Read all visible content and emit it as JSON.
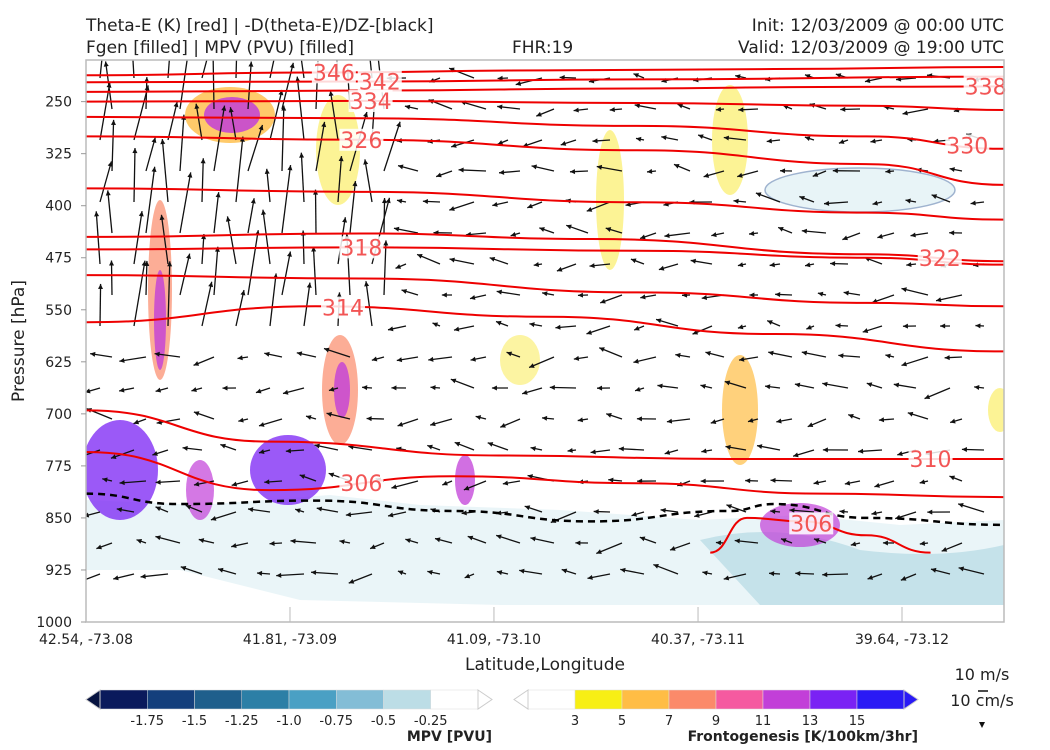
{
  "header": {
    "title_left_1": "Theta-E (K) [red] | -D(theta-E)/DZ-[black]",
    "title_left_2": "Fgen [filled] | MPV (PVU) [filled]",
    "title_center": "FHR:19",
    "title_right_1": "Init: 12/03/2009 @ 00:00 UTC",
    "title_right_2": "Valid: 12/03/2009 @ 19:00 UTC"
  },
  "colors": {
    "theta_e": "#ee0000",
    "dthetae_dz": "#000000",
    "vectors": "#111111",
    "mpv_scale": [
      "#0a1a5c",
      "#143f7c",
      "#1f5f8c",
      "#2c7fa6",
      "#4aa0c4",
      "#83bdd6",
      "#bcdde6",
      "#ffffff"
    ],
    "fgen_scale": [
      "#ffffff",
      "#f7ef15",
      "#ffbd45",
      "#fb8a6a",
      "#f55aa0",
      "#c23fd8",
      "#7a22f4",
      "#2a1af5"
    ]
  },
  "chart_data": {
    "type": "cross-section",
    "xlabel": "Latitude,Longitude",
    "ylabel": "Pressure [hPa]",
    "x_ticks": [
      "42.54, -73.08",
      "41.81, -73.09",
      "41.09, -73.10",
      "40.37, -73.11",
      "39.64, -73.12"
    ],
    "x_tick_frac": [
      0,
      0.2222,
      0.4444,
      0.6667,
      0.8889
    ],
    "y_ticks": [
      250,
      325,
      400,
      475,
      550,
      625,
      700,
      775,
      850,
      925,
      1000
    ],
    "ylim": [
      1000,
      190
    ],
    "theta_e_contours": [
      {
        "label": "346",
        "points": [
          [
            0,
            212
          ],
          [
            0.25,
            208
          ],
          [
            0.5,
            205
          ],
          [
            0.75,
            203
          ],
          [
            1,
            200
          ]
        ],
        "label_x": 0.27
      },
      {
        "label": "342",
        "points": [
          [
            0,
            222
          ],
          [
            0.3,
            221
          ],
          [
            0.6,
            218
          ],
          [
            1,
            214
          ]
        ],
        "label_x": 0.32
      },
      {
        "label": "338",
        "points": [
          [
            0,
            236
          ],
          [
            0.3,
            234
          ],
          [
            0.6,
            231
          ],
          [
            0.8,
            229
          ],
          [
            1,
            228
          ]
        ],
        "label_x": 0.98
      },
      {
        "label": "334",
        "points": [
          [
            0,
            250
          ],
          [
            0.3,
            249
          ],
          [
            0.6,
            252
          ],
          [
            0.85,
            256
          ],
          [
            1,
            262
          ]
        ],
        "label_x": 0.31
      },
      {
        "label": "330",
        "points": [
          [
            0,
            272
          ],
          [
            0.3,
            274
          ],
          [
            0.6,
            285
          ],
          [
            0.85,
            300
          ],
          [
            1,
            318
          ]
        ],
        "label_x": 0.96
      },
      {
        "label": "326",
        "points": [
          [
            0,
            300
          ],
          [
            0.3,
            305
          ],
          [
            0.6,
            320
          ],
          [
            0.85,
            340
          ],
          [
            1,
            370
          ]
        ],
        "label_x": 0.3
      },
      {
        "label": "",
        "points": [
          [
            0,
            375
          ],
          [
            0.3,
            380
          ],
          [
            0.6,
            395
          ],
          [
            0.85,
            410
          ],
          [
            1,
            420
          ]
        ],
        "label_x": 0.5
      },
      {
        "label": "318",
        "points": [
          [
            0,
            463
          ],
          [
            0.3,
            460
          ],
          [
            0.6,
            465
          ],
          [
            0.85,
            475
          ],
          [
            1,
            485
          ]
        ],
        "label_x": 0.3
      },
      {
        "label": "322",
        "points": [
          [
            0,
            445
          ],
          [
            0.3,
            440
          ],
          [
            0.55,
            448
          ],
          [
            0.85,
            470
          ],
          [
            1,
            480
          ]
        ],
        "label_x": 0.93
      },
      {
        "label": "",
        "points": [
          [
            0,
            500
          ],
          [
            0.3,
            505
          ],
          [
            0.6,
            525
          ],
          [
            0.85,
            540
          ],
          [
            1,
            545
          ]
        ],
        "label_x": 0.5
      },
      {
        "label": "314",
        "points": [
          [
            0,
            568
          ],
          [
            0.25,
            545
          ],
          [
            0.5,
            560
          ],
          [
            0.75,
            585
          ],
          [
            1,
            610
          ]
        ],
        "label_x": 0.28
      },
      {
        "label": "310",
        "points": [
          [
            0,
            695
          ],
          [
            0.2,
            740
          ],
          [
            0.45,
            760
          ],
          [
            0.7,
            765
          ],
          [
            1,
            765
          ]
        ],
        "label_x": 0.92
      },
      {
        "label": "306",
        "points": [
          [
            0,
            755
          ],
          [
            0.2,
            810
          ],
          [
            0.4,
            790
          ],
          [
            0.6,
            800
          ],
          [
            0.8,
            815
          ],
          [
            1,
            820
          ]
        ],
        "label_x": 0.3
      },
      {
        "label": "306",
        "points": [
          [
            0.68,
            900
          ],
          [
            0.72,
            850
          ],
          [
            0.78,
            855
          ],
          [
            0.85,
            875
          ],
          [
            0.92,
            900
          ]
        ],
        "label_x": 0.79
      }
    ],
    "dthetae_dz_zero_line": [
      [
        0,
        815
      ],
      [
        0.1,
        830
      ],
      [
        0.25,
        825
      ],
      [
        0.4,
        840
      ],
      [
        0.55,
        855
      ],
      [
        0.7,
        840
      ],
      [
        0.75,
        830
      ],
      [
        0.85,
        850
      ],
      [
        1,
        860
      ]
    ],
    "mpv_colorbar": {
      "label": "MPV [PVU]",
      "ticks": [
        "-1.75",
        "-1.5",
        "-1.25",
        "-1.0",
        "-0.75",
        "-0.5",
        "-0.25"
      ]
    },
    "fgen_colorbar": {
      "label": "Frontogenesis [K/100km/3hr]",
      "ticks": [
        "3",
        "5",
        "7",
        "9",
        "11",
        "13",
        "15"
      ]
    },
    "vector_scale": {
      "horizontal": "10 m/s",
      "vertical": "10 cm/s"
    }
  }
}
